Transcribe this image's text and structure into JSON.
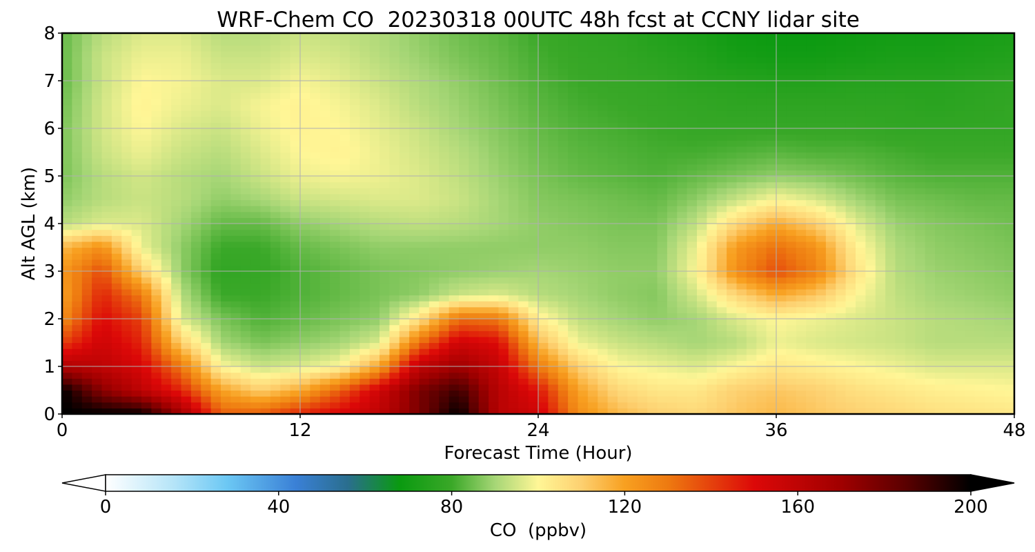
{
  "chart_data": {
    "type": "heatmap",
    "title": "WRF-Chem CO  20230318 00UTC 48h fcst at CCNY lidar site",
    "xlabel": "Forecast Time (Hour)",
    "ylabel": "Alt AGL (km)",
    "xlim": [
      0,
      48
    ],
    "ylim": [
      0,
      8
    ],
    "xticks": [
      0,
      12,
      24,
      36,
      48
    ],
    "yticks": [
      0,
      1,
      2,
      3,
      4,
      5,
      6,
      7,
      8
    ],
    "grid": true,
    "x": [
      0,
      2,
      4,
      6,
      8,
      10,
      12,
      14,
      16,
      18,
      20,
      22,
      24,
      26,
      28,
      30,
      32,
      34,
      36,
      38,
      40,
      42,
      44,
      46,
      48
    ],
    "y": [
      0,
      0.5,
      1,
      1.5,
      2,
      2.5,
      3,
      3.5,
      4,
      4.5,
      5,
      5.5,
      6,
      6.5,
      7,
      7.5,
      8
    ],
    "z": [
      [
        200,
        200,
        199,
        170,
        135,
        135,
        145,
        152,
        160,
        178,
        200,
        162,
        155,
        125,
        115,
        110,
        108,
        112,
        115,
        112,
        110,
        108,
        106,
        105,
        104
      ],
      [
        200,
        175,
        160,
        145,
        120,
        110,
        118,
        135,
        155,
        178,
        190,
        162,
        148,
        120,
        108,
        104,
        104,
        110,
        112,
        110,
        106,
        104,
        102,
        101,
        100
      ],
      [
        165,
        160,
        152,
        130,
        100,
        94,
        96,
        100,
        120,
        160,
        170,
        158,
        130,
        110,
        100,
        98,
        96,
        100,
        104,
        102,
        100,
        98,
        96,
        96,
        96
      ],
      [
        140,
        155,
        145,
        110,
        90,
        86,
        88,
        90,
        96,
        132,
        155,
        150,
        115,
        98,
        94,
        92,
        90,
        92,
        98,
        96,
        95,
        94,
        92,
        92,
        92
      ],
      [
        125,
        150,
        140,
        96,
        86,
        82,
        84,
        86,
        88,
        105,
        132,
        130,
        102,
        93,
        90,
        88,
        90,
        96,
        100,
        98,
        96,
        94,
        92,
        91,
        90
      ],
      [
        120,
        145,
        130,
        92,
        80,
        80,
        82,
        84,
        86,
        88,
        94,
        96,
        92,
        90,
        88,
        87,
        95,
        108,
        118,
        112,
        100,
        93,
        90,
        89,
        88
      ],
      [
        122,
        138,
        110,
        88,
        78,
        79,
        82,
        84,
        86,
        87,
        88,
        89,
        90,
        89,
        88,
        88,
        100,
        125,
        138,
        128,
        105,
        92,
        89,
        88,
        87
      ],
      [
        115,
        125,
        98,
        88,
        80,
        80,
        84,
        86,
        88,
        88,
        88,
        88,
        88,
        88,
        87,
        87,
        98,
        122,
        132,
        124,
        102,
        91,
        88,
        87,
        86
      ],
      [
        92,
        96,
        96,
        90,
        84,
        84,
        88,
        90,
        92,
        93,
        92,
        90,
        88,
        87,
        86,
        86,
        93,
        108,
        118,
        110,
        97,
        89,
        87,
        86,
        85
      ],
      [
        88,
        92,
        94,
        92,
        88,
        90,
        94,
        95,
        96,
        96,
        94,
        90,
        87,
        86,
        85,
        84,
        88,
        94,
        100,
        96,
        90,
        86,
        85,
        84,
        84
      ],
      [
        86,
        92,
        95,
        92,
        90,
        94,
        98,
        99,
        98,
        96,
        93,
        89,
        86,
        84,
        83,
        82,
        84,
        86,
        88,
        87,
        85,
        83,
        82,
        82,
        82
      ],
      [
        86,
        94,
        98,
        94,
        92,
        96,
        100,
        101,
        98,
        95,
        92,
        88,
        85,
        83,
        82,
        81,
        81,
        82,
        83,
        82,
        82,
        81,
        80,
        80,
        80
      ],
      [
        86,
        95,
        100,
        96,
        94,
        98,
        101,
        100,
        97,
        94,
        90,
        87,
        84,
        82,
        81,
        80,
        79,
        79,
        79,
        79,
        79,
        78,
        78,
        78,
        78
      ],
      [
        85,
        95,
        101,
        98,
        96,
        99,
        101,
        99,
        96,
        92,
        89,
        86,
        83,
        81,
        80,
        79,
        78,
        77,
        77,
        77,
        77,
        77,
        76,
        77,
        78
      ],
      [
        84,
        94,
        100,
        99,
        96,
        96,
        99,
        97,
        94,
        91,
        88,
        85,
        82,
        80,
        79,
        78,
        76,
        75,
        74,
        74,
        75,
        75,
        75,
        76,
        77
      ],
      [
        84,
        94,
        98,
        98,
        94,
        94,
        96,
        95,
        92,
        89,
        86,
        84,
        81,
        79,
        78,
        76,
        74,
        71,
        70,
        70,
        71,
        72,
        72,
        73,
        74
      ],
      [
        84,
        92,
        96,
        96,
        92,
        92,
        94,
        93,
        91,
        88,
        85,
        83,
        80,
        78,
        77,
        74,
        72,
        69,
        68,
        68,
        69,
        70,
        70,
        71,
        72
      ]
    ],
    "colorbar": {
      "label": "CO  (ppbv)",
      "min": 0,
      "max": 200,
      "ticks": [
        0,
        40,
        80,
        120,
        160,
        200
      ],
      "extend": "both"
    },
    "colormap": [
      [
        0,
        "#ffffff"
      ],
      [
        16,
        "#b4e4f8"
      ],
      [
        28,
        "#6cc8f4"
      ],
      [
        44,
        "#3a80d6"
      ],
      [
        56,
        "#2a6e8e"
      ],
      [
        68,
        "#0a9a10"
      ],
      [
        80,
        "#3aa828"
      ],
      [
        90,
        "#a6d676"
      ],
      [
        100,
        "#fff696"
      ],
      [
        110,
        "#fdd070"
      ],
      [
        120,
        "#f8a020"
      ],
      [
        130,
        "#ee7a10"
      ],
      [
        150,
        "#dc0808"
      ],
      [
        170,
        "#a00000"
      ],
      [
        185,
        "#5a0000"
      ],
      [
        200,
        "#000000"
      ]
    ]
  }
}
